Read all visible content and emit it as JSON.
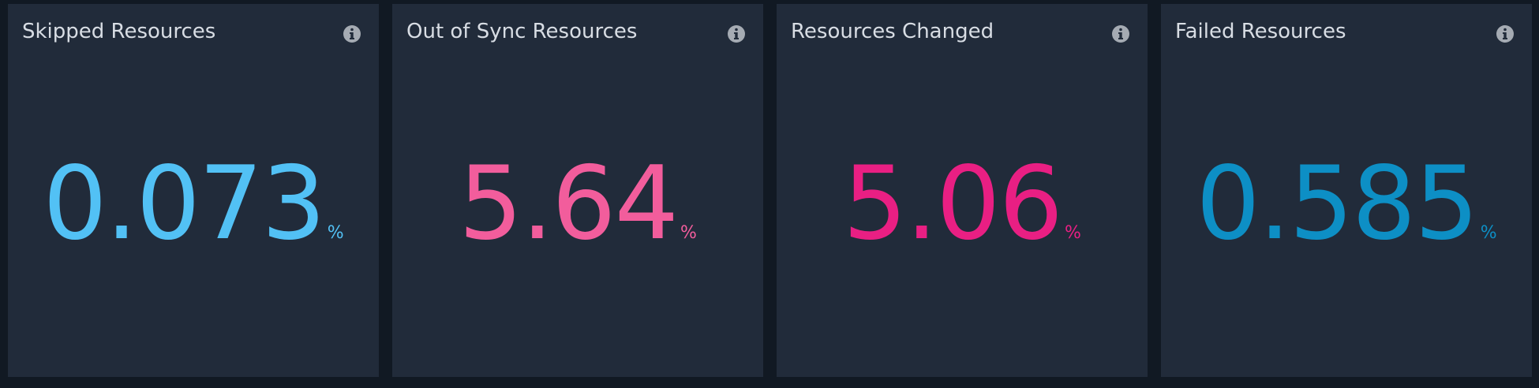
{
  "panels": [
    {
      "title": "Skipped Resources",
      "value": "0.073",
      "unit": "%",
      "color": "#52c1f5"
    },
    {
      "title": "Out of Sync Resources",
      "value": "5.64",
      "unit": "%",
      "color": "#f25d9c"
    },
    {
      "title": "Resources Changed",
      "value": "5.06",
      "unit": "%",
      "color": "#e91f83"
    },
    {
      "title": "Failed Resources",
      "value": "0.585",
      "unit": "%",
      "color": "#0d8fc5"
    }
  ]
}
